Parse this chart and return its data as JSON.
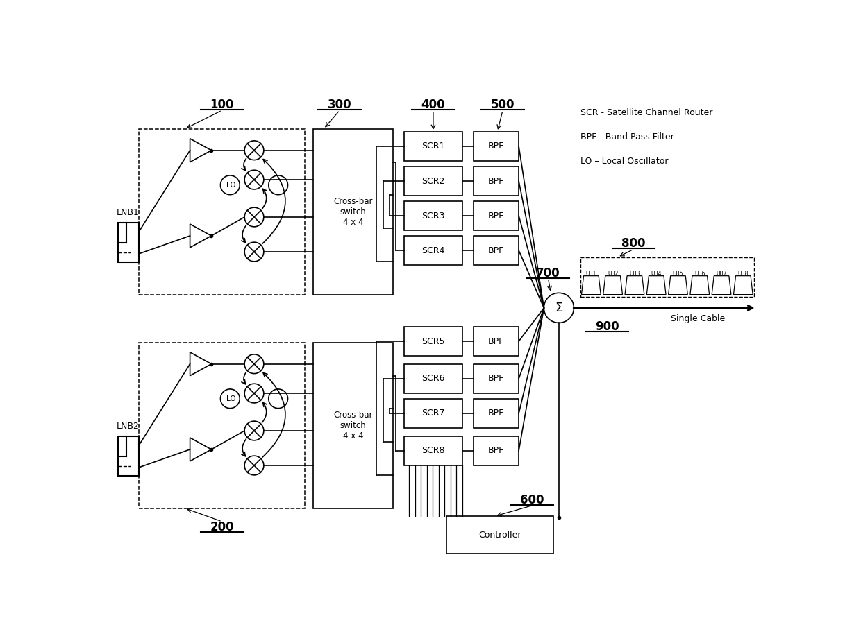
{
  "bg_color": "#ffffff",
  "line_color": "#000000",
  "fig_width": 12.4,
  "fig_height": 9.27,
  "legend_lines": [
    "SCR - Satellite Channel Router",
    "BPF - Band Pass Filter",
    "LO – Local Oscillator"
  ],
  "scr_labels": [
    "SCR1",
    "SCR2",
    "SCR3",
    "SCR4",
    "SCR5",
    "SCR6",
    "SCR7",
    "SCR8"
  ],
  "ub_labels": [
    "UB1",
    "UB2",
    "UB3",
    "UB4",
    "UB5",
    "UB6",
    "UB7",
    "UB8"
  ],
  "crossbar_text": "Cross-bar\nswitch\n4 x 4",
  "controller_text": "Controller",
  "sigma_text": "Σ",
  "single_cable_text": "Single Cable",
  "lnb1_text": "LNB1",
  "lnb2_text": "LNB2",
  "lo_text": "LO",
  "bpf_text": "BPF",
  "ref_100": "100",
  "ref_200": "200",
  "ref_300": "300",
  "ref_400": "400",
  "ref_500": "500",
  "ref_600": "600",
  "ref_700": "700",
  "ref_800": "800",
  "ref_900": "900"
}
